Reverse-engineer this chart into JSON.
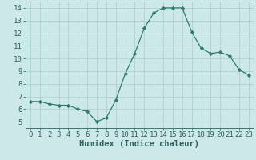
{
  "x": [
    0,
    1,
    2,
    3,
    4,
    5,
    6,
    7,
    8,
    9,
    10,
    11,
    12,
    13,
    14,
    15,
    16,
    17,
    18,
    19,
    20,
    21,
    22,
    23
  ],
  "y": [
    6.6,
    6.6,
    6.4,
    6.3,
    6.3,
    6.0,
    5.8,
    5.0,
    5.3,
    6.7,
    8.8,
    10.4,
    12.4,
    13.6,
    14.0,
    14.0,
    14.0,
    12.1,
    10.8,
    10.4,
    10.5,
    10.2,
    9.1,
    8.7
  ],
  "line_color": "#2e7d6e",
  "marker": "D",
  "marker_size": 2.2,
  "bg_color": "#cce8e8",
  "grid_color": "#aacccc",
  "xlabel": "Humidex (Indice chaleur)",
  "xlim": [
    -0.5,
    23.5
  ],
  "ylim": [
    4.5,
    14.5
  ],
  "yticks": [
    5,
    6,
    7,
    8,
    9,
    10,
    11,
    12,
    13,
    14
  ],
  "xticks": [
    0,
    1,
    2,
    3,
    4,
    5,
    6,
    7,
    8,
    9,
    10,
    11,
    12,
    13,
    14,
    15,
    16,
    17,
    18,
    19,
    20,
    21,
    22,
    23
  ],
  "tick_color": "#2e6060",
  "label_fontsize": 7.5,
  "tick_fontsize": 6.5
}
